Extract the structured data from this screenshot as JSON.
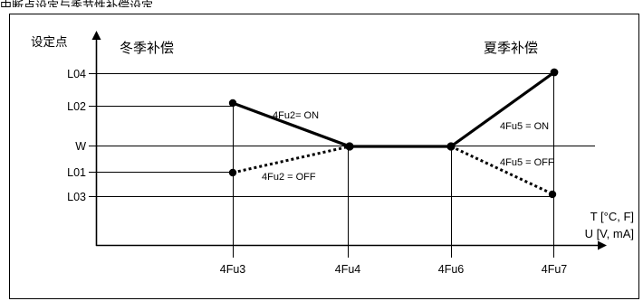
{
  "caption": "中断点设定与季节性补偿设定",
  "axis": {
    "y_title": "设定点",
    "x_title_line1": "T [°C, F]",
    "x_title_line2": "U [V, mA]"
  },
  "season_labels": {
    "winter": "冬季补偿",
    "summer": "夏季补偿"
  },
  "y_levels": [
    "L04",
    "L02",
    "W",
    "L01",
    "L03"
  ],
  "x_ticks": [
    "4Fu3",
    "4Fu4",
    "4Fu6",
    "4Fu7"
  ],
  "annotations": {
    "on_left": "4Fu2= ON",
    "off_left": "4Fu2 = OFF",
    "on_right": "4Fu5 = ON",
    "off_right": "4Fu5 = OFF"
  }
}
